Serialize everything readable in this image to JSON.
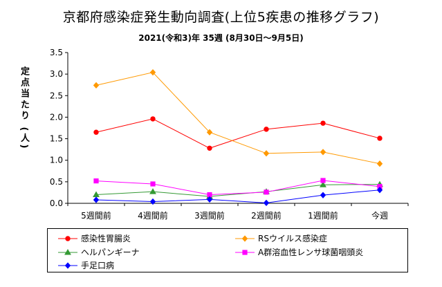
{
  "chart_data": {
    "type": "line",
    "title": "京都府感染症発生動向調査(上位5疾患の推移グラフ)",
    "subtitle": "2021(令和3)年  35週 (8月30日～9月5日)",
    "xlabel": "",
    "ylabel": "定点当たり (人)",
    "categories": [
      "5週間前",
      "4週間前",
      "3週間前",
      "2週間前",
      "1週間前",
      "今週"
    ],
    "ylim": [
      0,
      3.5
    ],
    "yticks": [
      "0.0",
      "0.5",
      "1.0",
      "1.5",
      "2.0",
      "2.5",
      "3.0",
      "3.5"
    ],
    "grid": false,
    "legend_position": "bottom",
    "series": [
      {
        "name": "感染性胃腸炎",
        "color": "#ff0000",
        "marker": "circle",
        "values": [
          1.65,
          1.96,
          1.28,
          1.72,
          1.86,
          1.51
        ]
      },
      {
        "name": "RSウイルス感染症",
        "color": "#ff9900",
        "marker": "diamond",
        "values": [
          2.74,
          3.04,
          1.65,
          1.16,
          1.19,
          0.92
        ]
      },
      {
        "name": "ヘルパンギーナ",
        "color": "#339933",
        "marker": "triangle",
        "values": [
          0.2,
          0.27,
          0.16,
          0.27,
          0.43,
          0.44
        ]
      },
      {
        "name": "A群溶血性レンサ球菌咽頭炎",
        "color": "#ff00ff",
        "marker": "square",
        "values": [
          0.52,
          0.45,
          0.2,
          0.26,
          0.53,
          0.39
        ]
      },
      {
        "name": "手足口病",
        "color": "#0000ff",
        "marker": "diamond",
        "values": [
          0.08,
          0.04,
          0.09,
          0.01,
          0.19,
          0.31
        ]
      }
    ]
  }
}
